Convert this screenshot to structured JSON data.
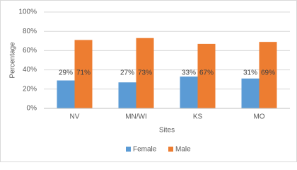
{
  "chart_data": {
    "type": "bar",
    "categories": [
      "NV",
      "MN/WI",
      "KS",
      "MO"
    ],
    "series": [
      {
        "name": "Female",
        "color": "#5b9bd5",
        "values": [
          29,
          27,
          33,
          31
        ],
        "value_labels": [
          "29%",
          "27%",
          "33%",
          "31%"
        ]
      },
      {
        "name": "Male",
        "color": "#ed7d31",
        "values": [
          71,
          73,
          67,
          69
        ],
        "value_labels": [
          "71%",
          "73%",
          "67%",
          "69%"
        ]
      }
    ],
    "ylim": [
      0,
      100
    ],
    "yticks": [
      {
        "value": 0,
        "label": "0%"
      },
      {
        "value": 20,
        "label": "20%"
      },
      {
        "value": 40,
        "label": "40%"
      },
      {
        "value": 60,
        "label": "60%"
      },
      {
        "value": 80,
        "label": "80%"
      },
      {
        "value": 100,
        "label": "100%"
      }
    ],
    "x_label": "Sites",
    "y_label": "Percentage",
    "grid": true,
    "legend": "bottom"
  }
}
